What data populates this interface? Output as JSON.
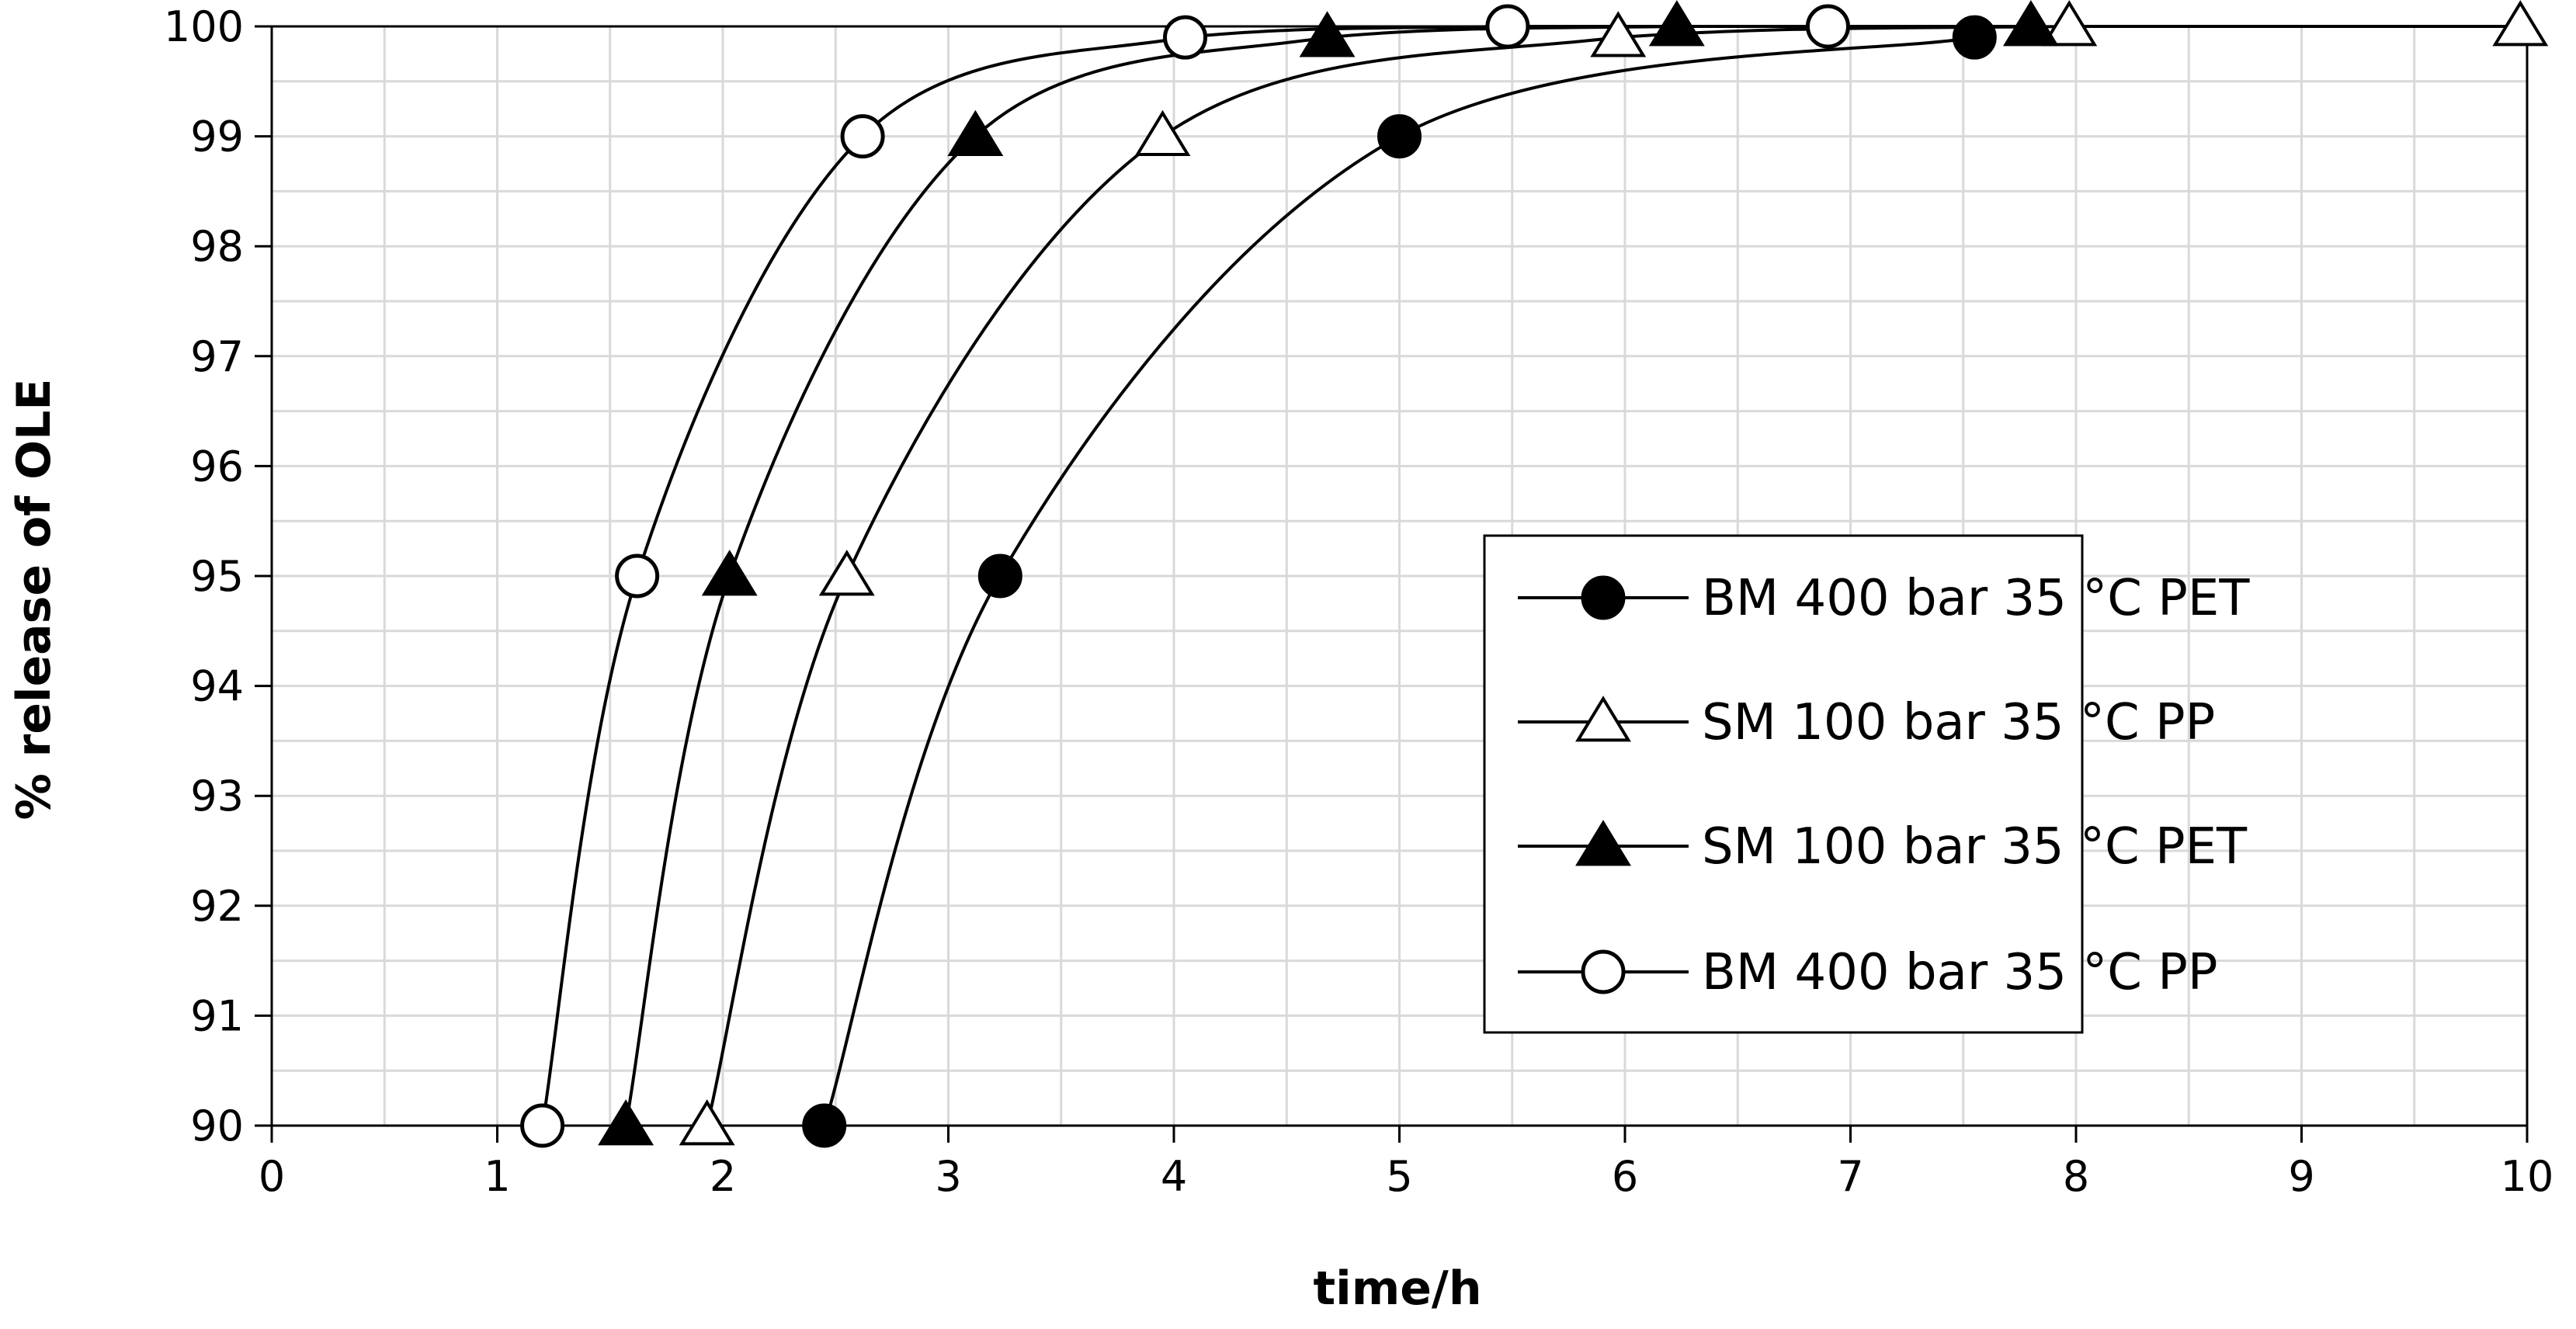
{
  "chart_data": {
    "type": "line",
    "title": "",
    "xlabel": "time/h",
    "ylabel": "% release of OLE",
    "xlim": [
      0,
      10
    ],
    "ylim": [
      90,
      100
    ],
    "xticks": [
      "0",
      "1",
      "2",
      "3",
      "4",
      "5",
      "6",
      "7",
      "8",
      "9",
      "10"
    ],
    "yticks": [
      "90",
      "91",
      "92",
      "93",
      "94",
      "95",
      "96",
      "97",
      "98",
      "99",
      "100"
    ],
    "grid": true,
    "legend_position": "center-right",
    "series": [
      {
        "name": "BM 400 bar 35 °C PET",
        "marker": "circle",
        "filled": true,
        "points": [
          [
            2.45,
            90
          ],
          [
            3.23,
            95
          ],
          [
            5.0,
            99
          ],
          [
            7.55,
            99.9
          ]
        ]
      },
      {
        "name": "SM 100 bar 35 °C PP",
        "marker": "triangle",
        "filled": false,
        "points": [
          [
            1.93,
            90
          ],
          [
            2.55,
            95
          ],
          [
            3.95,
            99
          ],
          [
            5.97,
            99.9
          ],
          [
            7.97,
            100
          ],
          [
            9.97,
            100
          ]
        ]
      },
      {
        "name": "SM 100 bar 35 °C PET",
        "marker": "triangle",
        "filled": true,
        "points": [
          [
            1.57,
            90
          ],
          [
            2.03,
            95
          ],
          [
            3.12,
            99
          ],
          [
            4.68,
            99.9
          ],
          [
            6.23,
            100
          ],
          [
            7.8,
            100
          ]
        ]
      },
      {
        "name": "BM 400 bar 35 °C PP",
        "marker": "circle",
        "filled": false,
        "points": [
          [
            1.2,
            90
          ],
          [
            1.62,
            95
          ],
          [
            2.62,
            99
          ],
          [
            4.05,
            99.9
          ],
          [
            5.48,
            100
          ],
          [
            6.9,
            100
          ]
        ]
      }
    ]
  }
}
